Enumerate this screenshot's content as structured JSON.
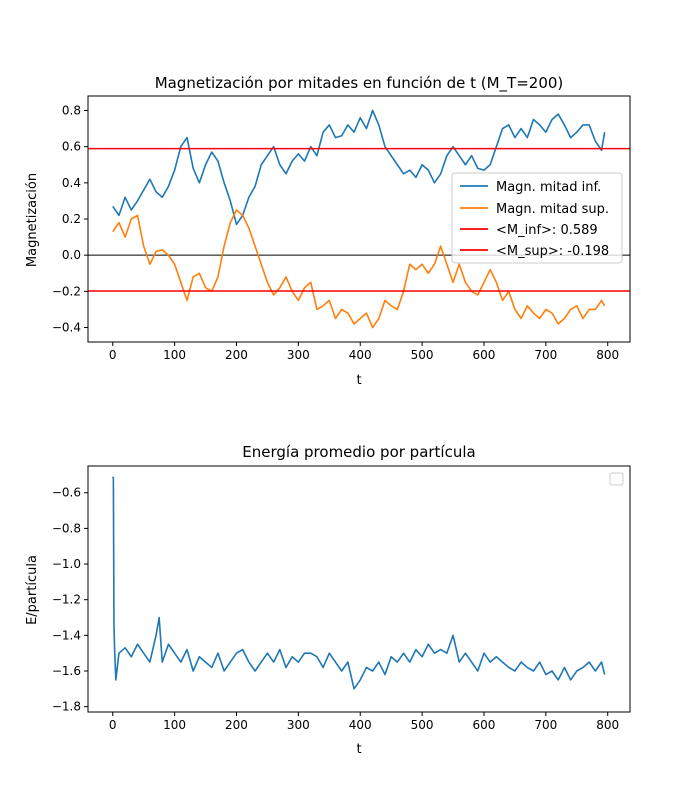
{
  "chart_data": [
    {
      "type": "line",
      "title": "Magnetización por mitades en función de t (M_T=200)",
      "xlabel": "t",
      "ylabel": "Magnetización",
      "xlim": [
        -40,
        836
      ],
      "ylim": [
        -0.48,
        0.88
      ],
      "xticks": [
        0,
        100,
        200,
        300,
        400,
        500,
        600,
        700,
        800
      ],
      "yticks": [
        -0.4,
        -0.2,
        0.0,
        0.2,
        0.4,
        0.6,
        0.8
      ],
      "ytick_labels": [
        "−0.4",
        "−0.2",
        "0.0",
        "0.2",
        "0.4",
        "0.6",
        "0.8"
      ],
      "legend_position": "center-right",
      "series": [
        {
          "name": "Magn. mitad inf.",
          "color": "#1f77b4",
          "x": [
            0,
            10,
            20,
            30,
            40,
            50,
            60,
            70,
            80,
            90,
            100,
            110,
            120,
            130,
            140,
            150,
            160,
            170,
            180,
            190,
            200,
            210,
            220,
            230,
            240,
            250,
            260,
            270,
            280,
            290,
            300,
            310,
            320,
            330,
            340,
            350,
            360,
            370,
            380,
            390,
            400,
            410,
            420,
            430,
            440,
            450,
            460,
            470,
            480,
            490,
            500,
            510,
            520,
            530,
            540,
            550,
            560,
            570,
            580,
            590,
            600,
            610,
            620,
            630,
            640,
            650,
            660,
            670,
            680,
            690,
            700,
            710,
            720,
            730,
            740,
            750,
            760,
            770,
            780,
            790,
            795
          ],
          "values": [
            0.27,
            0.22,
            0.32,
            0.25,
            0.3,
            0.36,
            0.42,
            0.35,
            0.32,
            0.38,
            0.47,
            0.6,
            0.65,
            0.48,
            0.4,
            0.5,
            0.57,
            0.52,
            0.4,
            0.3,
            0.17,
            0.22,
            0.32,
            0.38,
            0.5,
            0.55,
            0.6,
            0.5,
            0.45,
            0.52,
            0.56,
            0.52,
            0.6,
            0.55,
            0.68,
            0.72,
            0.65,
            0.66,
            0.72,
            0.68,
            0.76,
            0.7,
            0.8,
            0.72,
            0.6,
            0.55,
            0.5,
            0.45,
            0.47,
            0.43,
            0.5,
            0.47,
            0.4,
            0.45,
            0.55,
            0.6,
            0.55,
            0.5,
            0.55,
            0.48,
            0.47,
            0.5,
            0.6,
            0.7,
            0.72,
            0.65,
            0.7,
            0.65,
            0.75,
            0.72,
            0.68,
            0.75,
            0.78,
            0.72,
            0.65,
            0.68,
            0.72,
            0.72,
            0.63,
            0.58,
            0.68
          ]
        },
        {
          "name": "Magn. mitad sup.",
          "color": "#ff7f0e",
          "x": [
            0,
            10,
            20,
            30,
            40,
            50,
            60,
            70,
            80,
            90,
            100,
            110,
            120,
            130,
            140,
            150,
            160,
            170,
            180,
            190,
            200,
            210,
            220,
            230,
            240,
            250,
            260,
            270,
            280,
            290,
            300,
            310,
            320,
            330,
            340,
            350,
            360,
            370,
            380,
            390,
            400,
            410,
            420,
            430,
            440,
            450,
            460,
            470,
            480,
            490,
            500,
            510,
            520,
            530,
            540,
            550,
            560,
            570,
            580,
            590,
            600,
            610,
            620,
            630,
            640,
            650,
            660,
            670,
            680,
            690,
            700,
            710,
            720,
            730,
            740,
            750,
            760,
            770,
            780,
            790,
            795
          ],
          "values": [
            0.13,
            0.18,
            0.1,
            0.2,
            0.22,
            0.05,
            -0.05,
            0.02,
            0.03,
            0.0,
            -0.05,
            -0.15,
            -0.25,
            -0.12,
            -0.1,
            -0.18,
            -0.2,
            -0.12,
            0.05,
            0.18,
            0.25,
            0.22,
            0.15,
            0.05,
            -0.05,
            -0.15,
            -0.22,
            -0.18,
            -0.12,
            -0.2,
            -0.25,
            -0.18,
            -0.15,
            -0.3,
            -0.28,
            -0.25,
            -0.35,
            -0.3,
            -0.32,
            -0.38,
            -0.35,
            -0.32,
            -0.4,
            -0.35,
            -0.25,
            -0.28,
            -0.3,
            -0.2,
            -0.05,
            -0.08,
            -0.05,
            -0.1,
            -0.05,
            0.05,
            -0.05,
            -0.15,
            -0.05,
            -0.15,
            -0.2,
            -0.22,
            -0.15,
            -0.08,
            -0.15,
            -0.25,
            -0.2,
            -0.3,
            -0.35,
            -0.28,
            -0.32,
            -0.35,
            -0.3,
            -0.32,
            -0.38,
            -0.35,
            -0.3,
            -0.28,
            -0.35,
            -0.3,
            -0.3,
            -0.25,
            -0.28
          ]
        }
      ],
      "hlines": [
        {
          "name": "<M_inf>: 0.589",
          "value": 0.589,
          "color": "#ff0000",
          "in_legend": true
        },
        {
          "name": "<M_sup>: -0.198",
          "value": -0.198,
          "color": "#ff0000",
          "in_legend": true
        },
        {
          "name": "",
          "value": 0.0,
          "color": "#000000",
          "in_legend": false
        }
      ]
    },
    {
      "type": "line",
      "title": "Energía promedio por partícula",
      "xlabel": "t",
      "ylabel": "E/partícula",
      "xlim": [
        -40,
        836
      ],
      "ylim": [
        -1.83,
        -0.45
      ],
      "xticks": [
        0,
        100,
        200,
        300,
        400,
        500,
        600,
        700,
        800
      ],
      "yticks": [
        -1.8,
        -1.6,
        -1.4,
        -1.2,
        -1.0,
        -0.8,
        -0.6
      ],
      "ytick_labels": [
        "−1.8",
        "−1.6",
        "−1.4",
        "−1.2",
        "−1.0",
        "−0.8",
        "−0.6"
      ],
      "legend_position": "top-right",
      "legend_empty": true,
      "series": [
        {
          "color": "#1f77b4",
          "x": [
            0,
            1,
            2,
            3,
            5,
            10,
            20,
            30,
            40,
            50,
            60,
            70,
            75,
            80,
            90,
            100,
            110,
            120,
            130,
            140,
            150,
            160,
            170,
            180,
            190,
            200,
            210,
            220,
            230,
            240,
            250,
            260,
            270,
            280,
            290,
            300,
            310,
            320,
            330,
            340,
            350,
            360,
            370,
            380,
            390,
            400,
            410,
            420,
            430,
            440,
            450,
            460,
            470,
            480,
            490,
            500,
            510,
            520,
            530,
            540,
            550,
            560,
            570,
            580,
            590,
            600,
            610,
            620,
            630,
            640,
            650,
            660,
            670,
            680,
            690,
            700,
            710,
            720,
            730,
            740,
            750,
            760,
            770,
            780,
            790,
            795
          ],
          "values": [
            -0.51,
            -0.52,
            -1.35,
            -1.48,
            -1.65,
            -1.5,
            -1.47,
            -1.52,
            -1.45,
            -1.5,
            -1.55,
            -1.4,
            -1.3,
            -1.55,
            -1.45,
            -1.5,
            -1.55,
            -1.48,
            -1.6,
            -1.52,
            -1.55,
            -1.58,
            -1.5,
            -1.6,
            -1.55,
            -1.5,
            -1.48,
            -1.55,
            -1.6,
            -1.55,
            -1.5,
            -1.55,
            -1.48,
            -1.58,
            -1.52,
            -1.55,
            -1.5,
            -1.5,
            -1.52,
            -1.58,
            -1.5,
            -1.55,
            -1.6,
            -1.55,
            -1.7,
            -1.65,
            -1.58,
            -1.6,
            -1.55,
            -1.62,
            -1.52,
            -1.55,
            -1.5,
            -1.55,
            -1.48,
            -1.52,
            -1.45,
            -1.5,
            -1.48,
            -1.5,
            -1.4,
            -1.55,
            -1.5,
            -1.55,
            -1.6,
            -1.5,
            -1.55,
            -1.52,
            -1.55,
            -1.58,
            -1.6,
            -1.55,
            -1.58,
            -1.6,
            -1.55,
            -1.62,
            -1.6,
            -1.65,
            -1.58,
            -1.65,
            -1.6,
            -1.58,
            -1.55,
            -1.6,
            -1.55,
            -1.62
          ]
        }
      ]
    }
  ]
}
